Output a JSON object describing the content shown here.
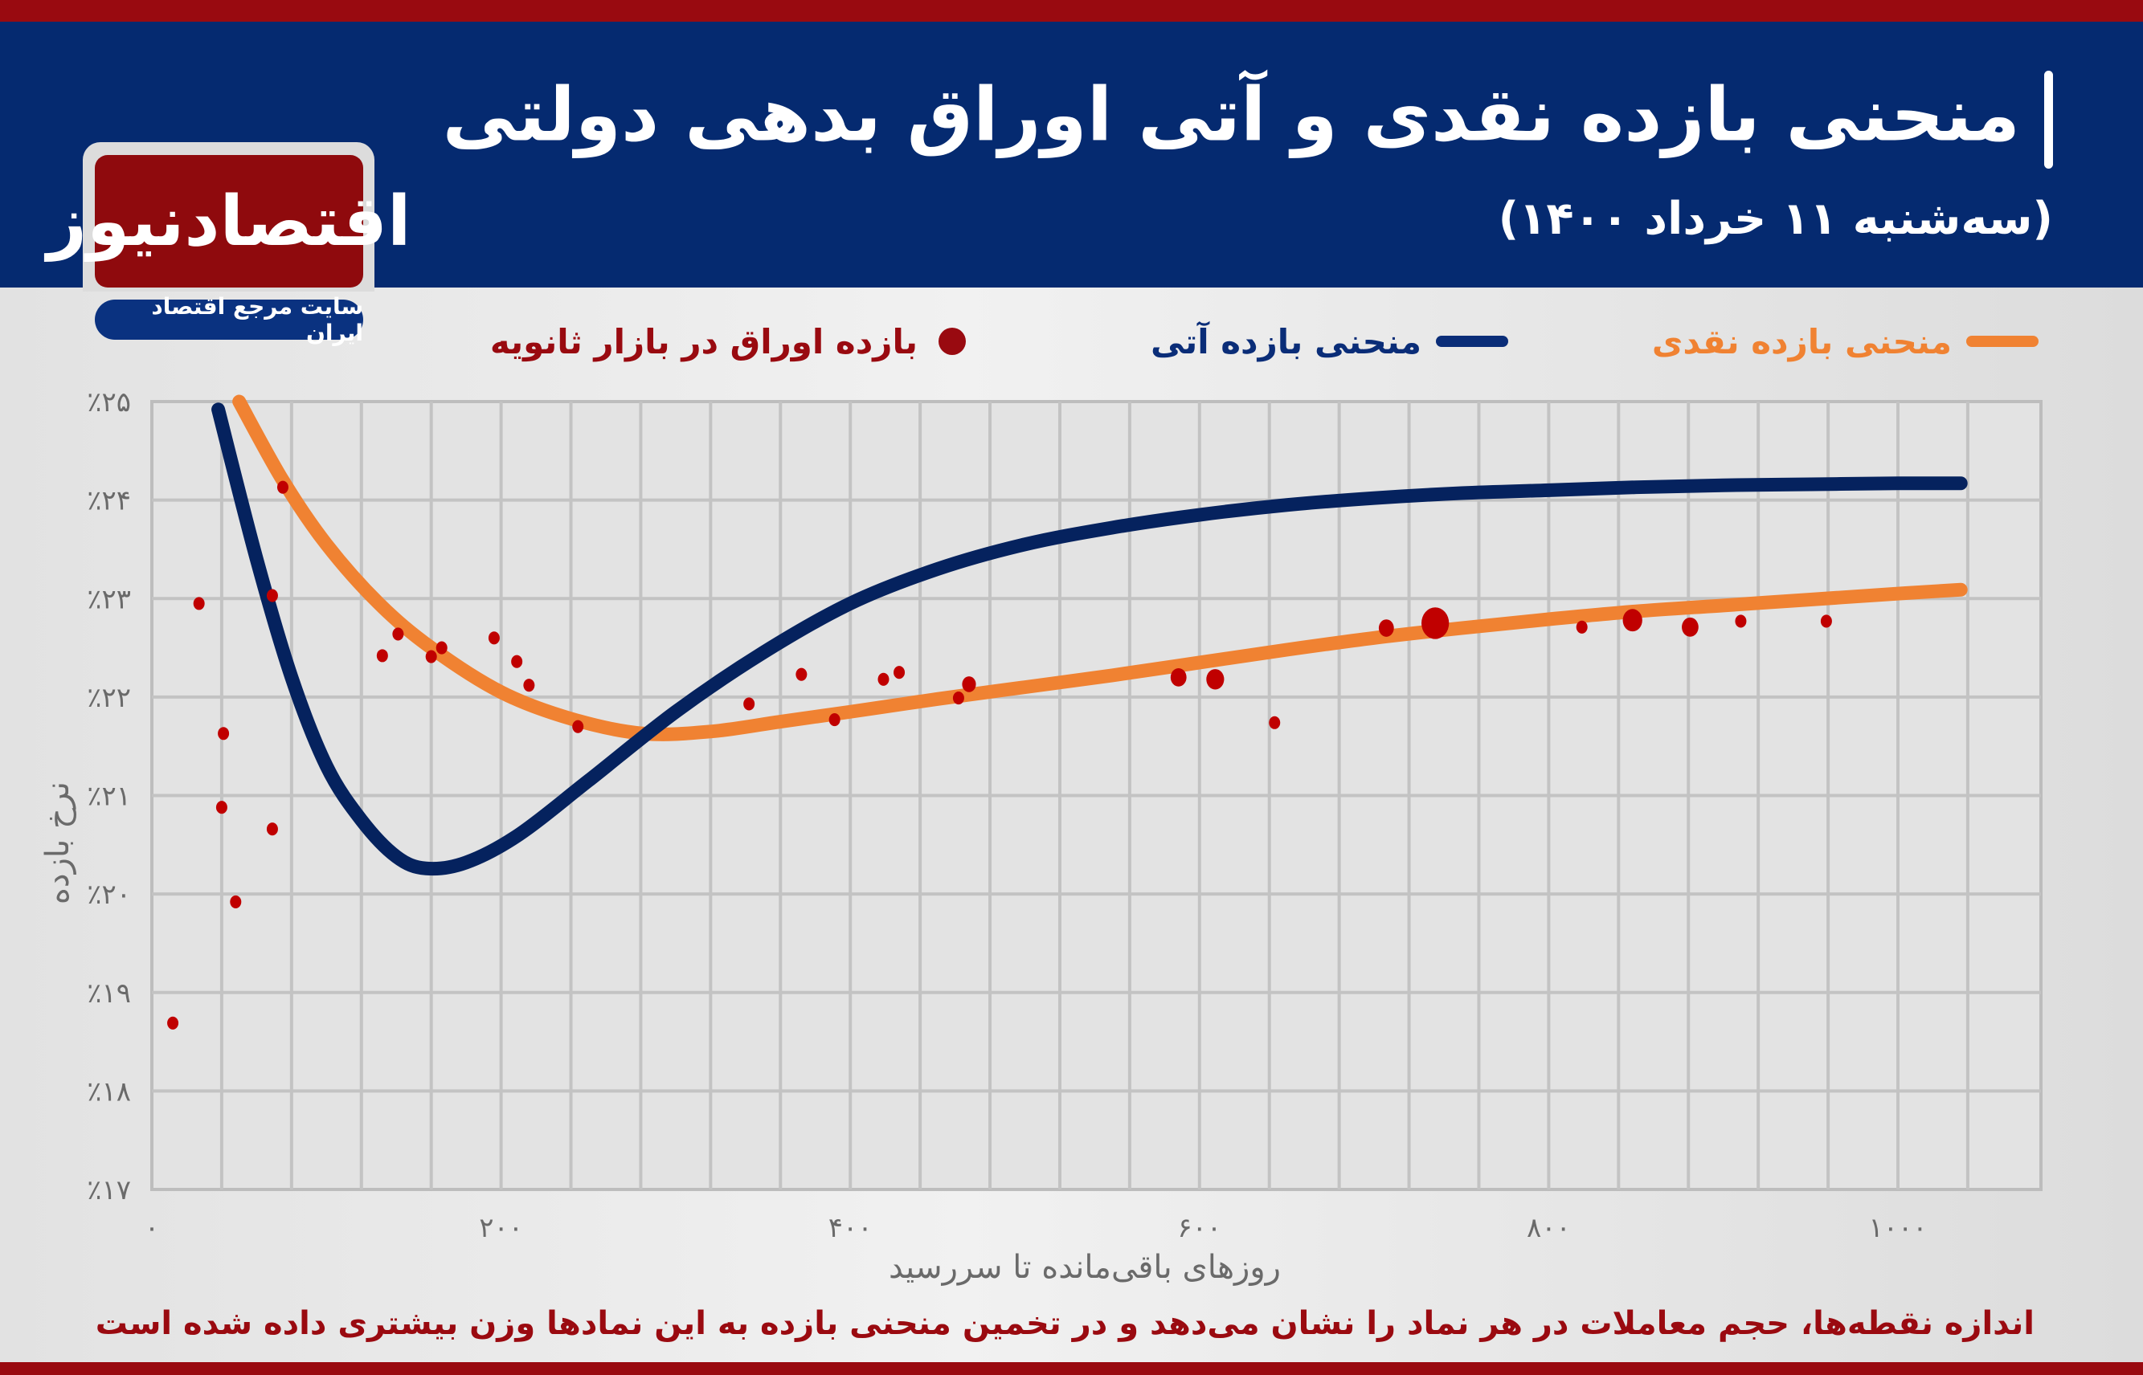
{
  "header": {
    "title": "منحنی بازده نقدی و آتی اوراق بدهی دولتی",
    "subtitle": "(سه‌شنبه ۱۱ خرداد ۱۴۰۰)"
  },
  "logo": {
    "name": "اقتصادنیوز",
    "tagline": "سایت مرجع اقتصاد ایران"
  },
  "legend": {
    "spot_curve": "منحنی بازده نقدی",
    "futures_curve": "منحنی بازده آتی",
    "secondary_market": "بازده اوراق در بازار ثانویه"
  },
  "axes": {
    "y_title": "نرخ بازده",
    "x_title": "روزهای باقی‌مانده تا سررسید"
  },
  "footnote": "اندازه نقطه‌ها، حجم معاملات در هر نماد را نشان می‌دهد و در تخمین منحنی بازده به این نمادها وزن بیشتری داده شده است",
  "colors": {
    "brand_red": "#990a10",
    "header_blue": "#052a70",
    "spot_orange": "#f08232",
    "futures_navy": "#05225e",
    "dot_red": "#c00000",
    "grid": "#c3c3c3"
  },
  "chart_data": {
    "type": "scatter",
    "title": "منحنی بازده نقدی و آتی اوراق بدهی دولتی",
    "subtitle": "(سه‌شنبه ۱۱ خرداد ۱۴۰۰)",
    "xlabel": "روزهای باقی‌مانده تا سررسید",
    "ylabel": "نرخ بازده",
    "xlim": [
      0,
      1080
    ],
    "ylim": [
      17,
      25
    ],
    "x_ticks": [
      0,
      200,
      400,
      600,
      800,
      1000
    ],
    "x_tick_labels": [
      "۰",
      "۲۰۰",
      "۴۰۰",
      "۶۰۰",
      "۸۰۰",
      "۱۰۰۰"
    ],
    "y_ticks": [
      17,
      18,
      19,
      20,
      21,
      22,
      23,
      24,
      25
    ],
    "y_tick_labels": [
      "٪۱۷",
      "٪۱۸",
      "٪۱۹",
      "٪۲۰",
      "٪۲۱",
      "٪۲۲",
      "٪۲۳",
      "٪۲۴",
      "٪۲۵"
    ],
    "grid": true,
    "x_grid_step": 40,
    "legend_position": "top",
    "series": [
      {
        "name": "منحنی بازده نقدی",
        "kind": "line",
        "color": "#f08232",
        "x": [
          50,
          75,
          100,
          130,
          160,
          200,
          240,
          281,
          320,
          360,
          400,
          450,
          500,
          550,
          600,
          650,
          700,
          750,
          800,
          850,
          900,
          950,
          1000,
          1036
        ],
        "y": [
          25.0,
          24.2,
          23.55,
          22.95,
          22.5,
          22.05,
          21.78,
          21.63,
          21.65,
          21.75,
          21.85,
          21.98,
          22.1,
          22.22,
          22.35,
          22.48,
          22.6,
          22.7,
          22.79,
          22.87,
          22.93,
          22.99,
          23.05,
          23.09
        ]
      },
      {
        "name": "منحنی بازده آتی",
        "kind": "line",
        "color": "#05225e",
        "x": [
          38,
          60,
          80,
          100,
          120,
          140,
          157,
          180,
          210,
          250,
          300,
          350,
          400,
          450,
          500,
          550,
          600,
          650,
          700,
          750,
          800,
          850,
          900,
          950,
          1000,
          1036
        ],
        "y": [
          24.92,
          23.4,
          22.2,
          21.3,
          20.75,
          20.38,
          20.26,
          20.32,
          20.6,
          21.15,
          21.85,
          22.45,
          22.95,
          23.3,
          23.55,
          23.72,
          23.85,
          23.95,
          24.02,
          24.07,
          24.1,
          24.13,
          24.15,
          24.16,
          24.17,
          24.17
        ]
      },
      {
        "name": "بازده اوراق در بازار ثانویه",
        "kind": "scatter",
        "color": "#c00000",
        "points": [
          {
            "x": 12,
            "y": 18.69,
            "size": 1
          },
          {
            "x": 27,
            "y": 22.95,
            "size": 1
          },
          {
            "x": 40,
            "y": 20.88,
            "size": 1
          },
          {
            "x": 41,
            "y": 21.63,
            "size": 1
          },
          {
            "x": 48,
            "y": 19.92,
            "size": 1
          },
          {
            "x": 69,
            "y": 23.03,
            "size": 1
          },
          {
            "x": 69,
            "y": 20.66,
            "size": 1
          },
          {
            "x": 75,
            "y": 24.13,
            "size": 1
          },
          {
            "x": 132,
            "y": 22.42,
            "size": 1
          },
          {
            "x": 141,
            "y": 22.64,
            "size": 1
          },
          {
            "x": 160,
            "y": 22.41,
            "size": 1
          },
          {
            "x": 166,
            "y": 22.5,
            "size": 1
          },
          {
            "x": 196,
            "y": 22.6,
            "size": 1
          },
          {
            "x": 209,
            "y": 22.36,
            "size": 1
          },
          {
            "x": 216,
            "y": 22.12,
            "size": 1
          },
          {
            "x": 244,
            "y": 21.7,
            "size": 1
          },
          {
            "x": 342,
            "y": 21.93,
            "size": 1
          },
          {
            "x": 372,
            "y": 22.23,
            "size": 1
          },
          {
            "x": 391,
            "y": 21.77,
            "size": 1
          },
          {
            "x": 419,
            "y": 22.18,
            "size": 1
          },
          {
            "x": 428,
            "y": 22.25,
            "size": 1
          },
          {
            "x": 462,
            "y": 21.99,
            "size": 1
          },
          {
            "x": 468,
            "y": 22.13,
            "size": 1.5
          },
          {
            "x": 588,
            "y": 22.2,
            "size": 2
          },
          {
            "x": 609,
            "y": 22.18,
            "size": 2.5
          },
          {
            "x": 643,
            "y": 21.74,
            "size": 1
          },
          {
            "x": 707,
            "y": 22.7,
            "size": 1.8
          },
          {
            "x": 735,
            "y": 22.75,
            "size": 6
          },
          {
            "x": 819,
            "y": 22.71,
            "size": 1
          },
          {
            "x": 848,
            "y": 22.78,
            "size": 3
          },
          {
            "x": 881,
            "y": 22.71,
            "size": 2.2
          },
          {
            "x": 910,
            "y": 22.77,
            "size": 1
          },
          {
            "x": 959,
            "y": 22.77,
            "size": 1
          }
        ]
      }
    ]
  }
}
